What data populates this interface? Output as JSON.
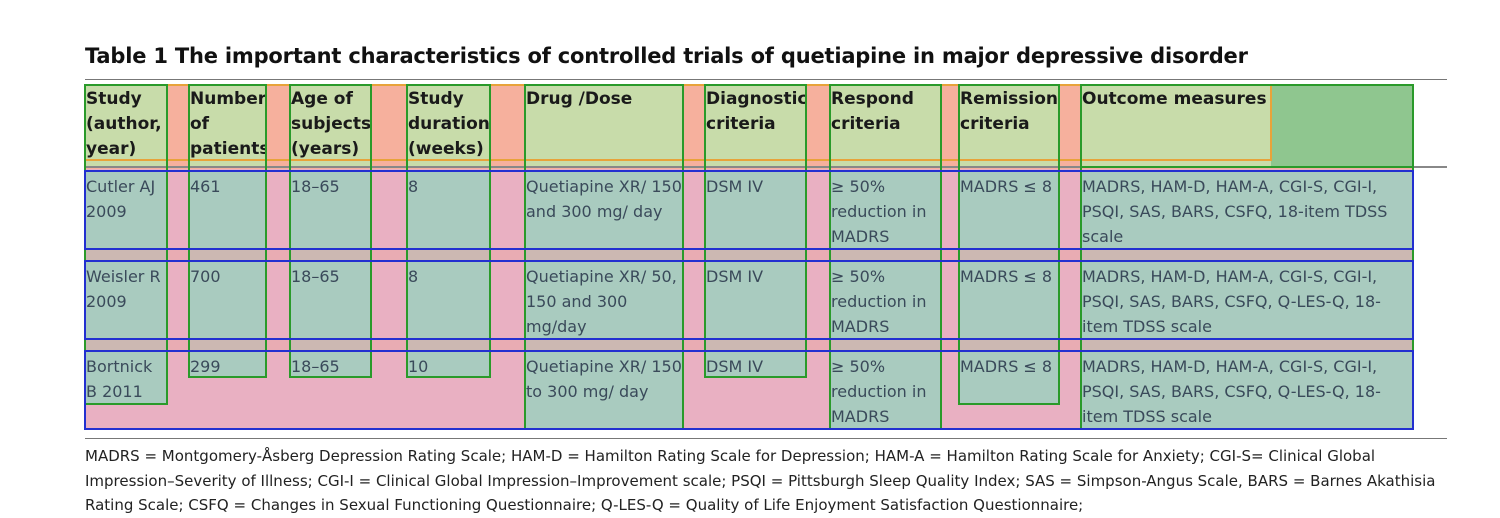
{
  "table": {
    "caption": "Table 1 The important characteristics of controlled trials of quetiapine in major depressive disorder",
    "headers": [
      "Study (author, year)",
      "Number of patients",
      "Age of subjects (years)",
      "Study duration (weeks)",
      "Drug /Dose",
      "Diagnostic criteria",
      "Respond criteria",
      "Remission criteria",
      "Outcome measures"
    ],
    "rows": [
      [
        "Cutler AJ 2009",
        "461",
        "18–65",
        "8",
        "Quetiapine XR/ 150 and 300 mg/ day",
        "DSM IV",
        "≥ 50% reduction in MADRS",
        "MADRS ≤ 8",
        "MADRS, HAM-D, HAM-A, CGI-S, CGI-I, PSQI, SAS, BARS, CSFQ, 18-item TDSS scale"
      ],
      [
        "Weisler R 2009",
        "700",
        "18–65",
        "8",
        "Quetiapine XR/ 50, 150 and 300 mg/day",
        "DSM IV",
        "≥ 50% reduction in MADRS",
        "MADRS ≤ 8",
        "MADRS, HAM-D, HAM-A, CGI-S, CGI-I, PSQI, SAS, BARS, CSFQ, Q-LES-Q, 18-item TDSS scale"
      ],
      [
        "Bortnick B 2011",
        "299",
        "18–65",
        "10",
        "Quetiapine XR/ 150 to 300 mg/ day",
        "DSM IV",
        "≥ 50% reduction in MADRS",
        "MADRS ≤ 8",
        "MADRS, HAM-D, HAM-A, CGI-S, CGI-I, PSQI, SAS, BARS, CSFQ, Q-LES-Q, 18-item TDSS scale"
      ]
    ],
    "footnote": "MADRS = Montgomery-Åsberg Depression Rating Scale; HAM-D = Hamilton Rating Scale for Depression; HAM-A = Hamilton Rating Scale for Anxiety; CGI-S= Clinical Global Impression–Severity of Illness; CGI-I = Clinical Global Impression–Improvement scale; PSQI = Pittsburgh Sleep Quality Index; SAS = Simpson-Angus Scale, BARS = Barnes Akathisia Rating Scale; CSFQ = Changes in Sexual Functioning Questionnaire; Q-LES-Q = Quality of Life Enjoyment Satisfaction Questionnaire;"
  },
  "colors": {
    "header_fill": "#c8dcaa",
    "body_fill": "#a9cbbf",
    "gap_fill": "#f6b09d",
    "pink_fill": "#e9b0c2",
    "outcome_header_extra": "#8fc68f"
  }
}
